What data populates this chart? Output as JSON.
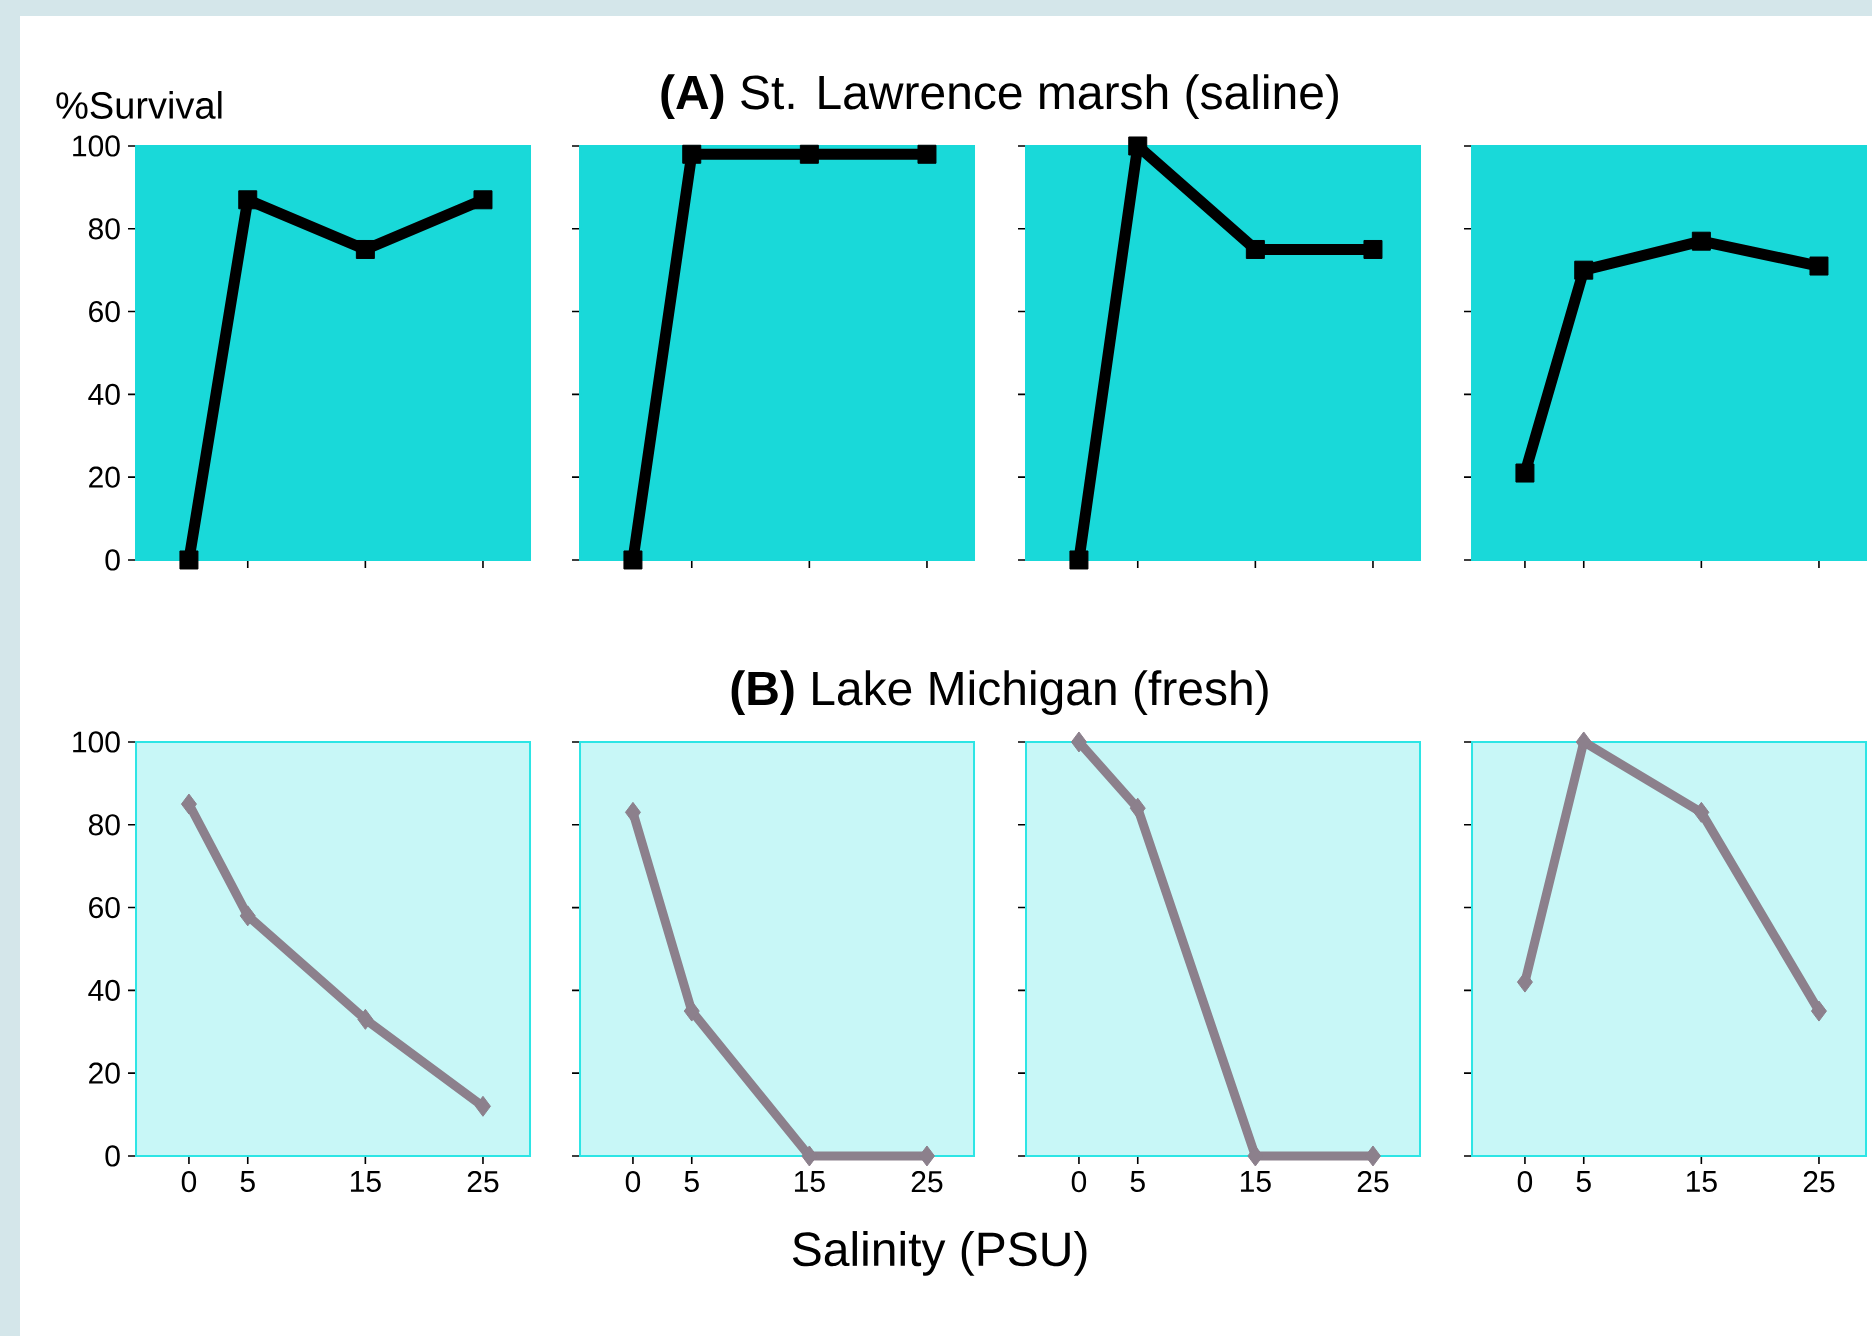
{
  "chart_data": [
    {
      "type": "line",
      "ylabel": "%Survival",
      "x": [
        0,
        5,
        15,
        25
      ],
      "xlim": [
        -4.5,
        29
      ],
      "xticks": [
        0,
        5,
        15,
        25
      ],
      "ylim": [
        0,
        100
      ],
      "yticks": [
        0,
        20,
        40,
        60,
        80,
        100
      ],
      "tick_labels": "y",
      "marker": "square",
      "line_style": "solid",
      "series": [
        {
          "color": "#000000",
          "values": [
            0,
            87,
            75,
            87
          ]
        }
      ]
    },
    {
      "type": "line",
      "title": "**(A)** St. Lawrence marsh (saline)",
      "x": [
        0,
        5,
        15,
        25
      ],
      "xlim": [
        -4.5,
        29
      ],
      "xticks": [
        0,
        5,
        15,
        25
      ],
      "ylim": [
        0,
        100
      ],
      "yticks": [
        0,
        20,
        40,
        60,
        80,
        100
      ],
      "tick_labels": false,
      "marker": "square",
      "line_style": "solid",
      "series": [
        {
          "color": "#000000",
          "values": [
            0,
            98,
            98,
            98
          ]
        }
      ]
    },
    {
      "type": "line",
      "x": [
        0,
        5,
        15,
        25
      ],
      "xlim": [
        -4.5,
        29
      ],
      "xticks": [
        0,
        5,
        15,
        25
      ],
      "ylim": [
        0,
        100
      ],
      "yticks": [
        0,
        20,
        40,
        60,
        80,
        100
      ],
      "tick_labels": false,
      "marker": "square",
      "line_style": "solid",
      "series": [
        {
          "color": "#000000",
          "values": [
            0,
            100,
            75,
            75
          ]
        }
      ]
    },
    {
      "type": "line",
      "x": [
        0,
        5,
        15,
        25
      ],
      "xlim": [
        -4.5,
        29
      ],
      "xticks": [
        0,
        5,
        15,
        25
      ],
      "ylim": [
        0,
        100
      ],
      "yticks": [
        0,
        20,
        40,
        60,
        80,
        100
      ],
      "tick_labels": false,
      "marker": "square",
      "line_style": "solid",
      "series": [
        {
          "color": "#000000",
          "values": [
            21,
            70,
            77,
            71
          ]
        }
      ]
    },
    {
      "type": "line",
      "x": [
        0,
        5,
        15,
        25
      ],
      "xlim": [
        -4.5,
        29
      ],
      "xticks": [
        0,
        5,
        15,
        25
      ],
      "ylim": [
        0,
        100
      ],
      "yticks": [
        0,
        20,
        40,
        60,
        80,
        100
      ],
      "marker": "diamond",
      "line_style": "solid",
      "series": [
        {
          "color": "#8c808c",
          "values": [
            85,
            58,
            33,
            12
          ]
        }
      ]
    },
    {
      "type": "line",
      "title": "**(B)** Lake Michigan (fresh)",
      "xlabel": "Salinity (PSU)",
      "x": [
        0,
        5,
        15,
        25
      ],
      "xlim": [
        -4.5,
        29
      ],
      "xticks": [
        0,
        5,
        15,
        25
      ],
      "ylim": [
        0,
        100
      ],
      "yticks": [
        0,
        20,
        40,
        60,
        80,
        100
      ],
      "tick_labels": "x",
      "marker": "diamond",
      "line_style": "solid",
      "series": [
        {
          "color": "#8c808c",
          "values": [
            83,
            35,
            0,
            0
          ]
        }
      ]
    },
    {
      "type": "line",
      "x": [
        0,
        5,
        15,
        25
      ],
      "xlim": [
        -4.5,
        29
      ],
      "xticks": [
        0,
        5,
        15,
        25
      ],
      "ylim": [
        0,
        100
      ],
      "yticks": [
        0,
        20,
        40,
        60,
        80,
        100
      ],
      "tick_labels": "x",
      "marker": "diamond",
      "line_style": "solid",
      "series": [
        {
          "color": "#8c808c",
          "values": [
            100,
            84,
            0,
            0
          ]
        }
      ]
    },
    {
      "type": "line",
      "x": [
        0,
        5,
        15,
        25
      ],
      "xlim": [
        -4.5,
        29
      ],
      "xticks": [
        0,
        5,
        15,
        25
      ],
      "ylim": [
        0,
        100
      ],
      "yticks": [
        0,
        20,
        40,
        60,
        80,
        100
      ],
      "tick_labels": "x",
      "marker": "diamond",
      "line_style": "solid",
      "series": [
        {
          "color": "#8c808c",
          "values": [
            42,
            100,
            83,
            35
          ]
        }
      ]
    }
  ]
}
